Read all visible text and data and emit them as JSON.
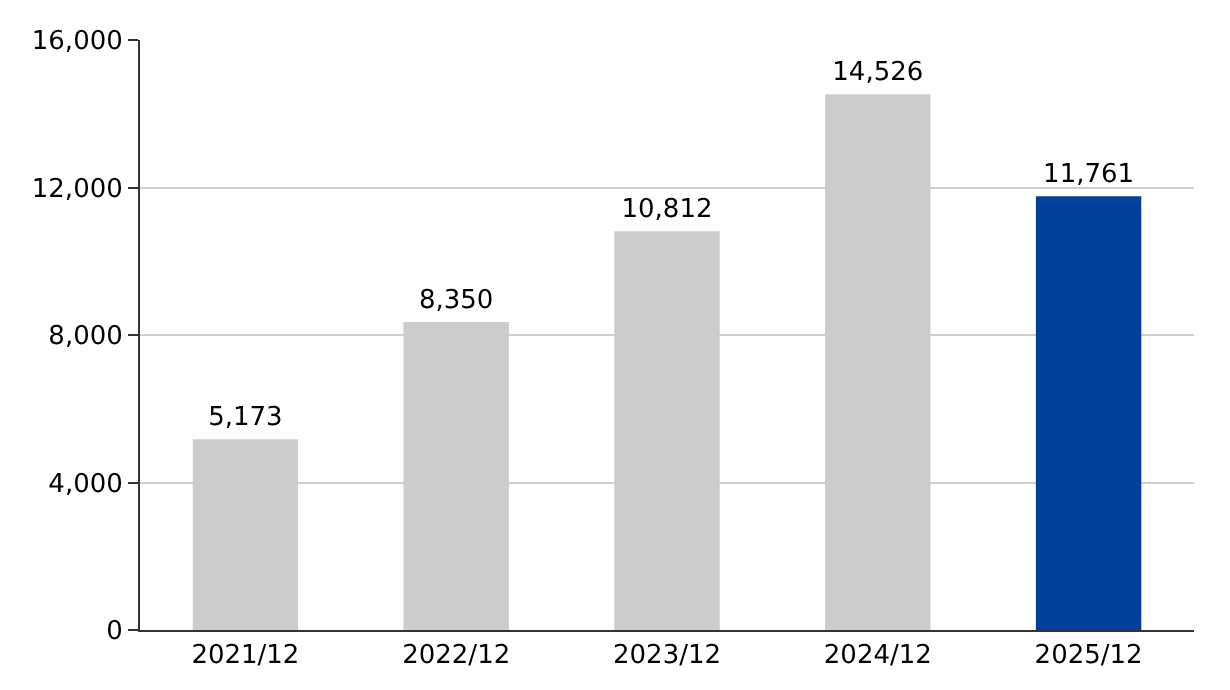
{
  "chart_data": {
    "type": "bar",
    "categories": [
      "2021/12",
      "2022/12",
      "2023/12",
      "2024/12",
      "2025/12"
    ],
    "values": [
      5173,
      8350,
      10812,
      14526,
      11761
    ],
    "colors": [
      "#cccccc",
      "#cccccc",
      "#cccccc",
      "#cccccc",
      "#00409a"
    ],
    "ylim": [
      0,
      16000
    ],
    "yticks": [
      {
        "value": 0,
        "label": "0"
      },
      {
        "value": 4000,
        "label": "4,000"
      },
      {
        "value": 8000,
        "label": "8,000"
      },
      {
        "value": 12000,
        "label": "12,000"
      },
      {
        "value": 16000,
        "label": "16,000"
      }
    ],
    "value_labels": [
      "5,173",
      "8,350",
      "10,812",
      "14,526",
      "11,761"
    ],
    "grid": "y"
  }
}
